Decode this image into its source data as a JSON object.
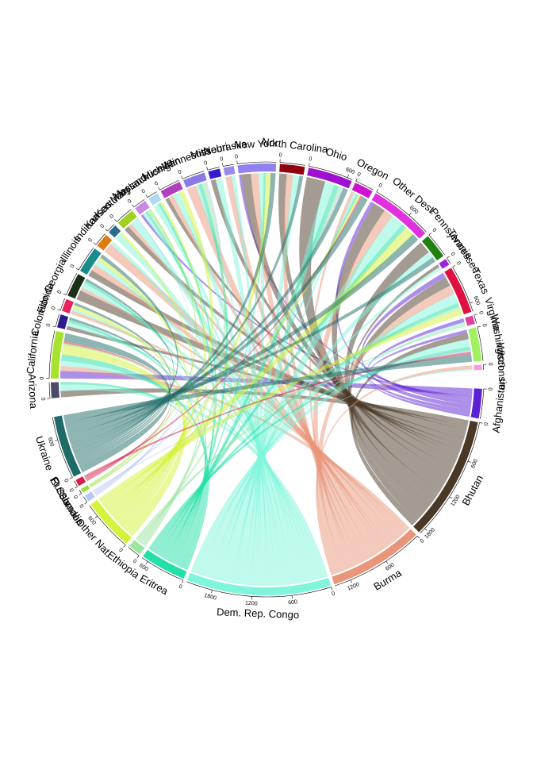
{
  "chart_data": {
    "type": "chord",
    "origins": [
      {
        "name": "Afghanistan",
        "color": "#5b1fd6",
        "ticks": [
          0
        ]
      },
      {
        "name": "Bhutan",
        "color": "#4a3826",
        "ticks": [
          0,
          600,
          1200,
          1800
        ]
      },
      {
        "name": "Burma",
        "color": "#e8957a",
        "ticks": [
          0,
          600,
          1200
        ]
      },
      {
        "name": "Dem. Rep. Congo",
        "color": "#7ff5dc",
        "ticks": [
          0,
          600,
          1200,
          1800
        ]
      },
      {
        "name": "Eritrea",
        "color": "#22e0a8",
        "ticks": [
          0,
          600
        ]
      },
      {
        "name": "Ethiopia",
        "color": "#9be6a0",
        "ticks": [
          0
        ]
      },
      {
        "name": "Other Nat.",
        "color": "#d6f23a",
        "ticks": [
          0,
          600
        ]
      },
      {
        "name": "Somalia",
        "color": "#b7c8f5",
        "ticks": [
          0
        ]
      },
      {
        "name": "El Salvador",
        "color": "#94e03c",
        "ticks": [
          0
        ]
      },
      {
        "name": "Russia",
        "color": "#d4204a",
        "ticks": [
          0
        ]
      },
      {
        "name": "Ukraine",
        "color": "#1f6b68",
        "ticks": [
          0,
          600
        ]
      }
    ],
    "destinations": [
      {
        "name": "Arizona",
        "color": "#4a4a6a",
        "ticks": [
          0
        ]
      },
      {
        "name": "California",
        "color": "#a6e22e",
        "ticks": [
          0
        ]
      },
      {
        "name": "Colorado",
        "color": "#2b1b8c",
        "ticks": [
          0
        ]
      },
      {
        "name": "Florida",
        "color": "#e8245a",
        "ticks": [
          0
        ]
      },
      {
        "name": "Georgia",
        "color": "#1a2e1a",
        "ticks": [
          0
        ]
      },
      {
        "name": "Illinois",
        "color": "#1a8c8c",
        "ticks": [
          0
        ]
      },
      {
        "name": "Indiana",
        "color": "#e07a10",
        "ticks": [
          0
        ]
      },
      {
        "name": "Kansas",
        "color": "#2a6a8a",
        "ticks": [
          0
        ]
      },
      {
        "name": "Kentucky",
        "color": "#a0d020",
        "ticks": [
          0
        ]
      },
      {
        "name": "Maryland",
        "color": "#c88ae0",
        "ticks": [
          0
        ]
      },
      {
        "name": "Massachusetts",
        "color": "#b0d8f0",
        "ticks": [
          0
        ]
      },
      {
        "name": "Michigan",
        "color": "#b040c0",
        "ticks": [
          0
        ]
      },
      {
        "name": "Minnesota",
        "color": "#8a7ae8",
        "ticks": [
          0
        ]
      },
      {
        "name": "Missouri",
        "color": "#3a1ad0",
        "ticks": [
          0
        ]
      },
      {
        "name": "Nebraska",
        "color": "#9a8af0",
        "ticks": [
          0
        ]
      },
      {
        "name": "New York",
        "color": "#9080f0",
        "ticks": [
          0
        ]
      },
      {
        "name": "North Carolina",
        "color": "#900010",
        "ticks": [
          0
        ]
      },
      {
        "name": "Ohio",
        "color": "#a010d0",
        "ticks": [
          0,
          600
        ]
      },
      {
        "name": "Oregon",
        "color": "#d010d0",
        "ticks": [
          0
        ]
      },
      {
        "name": "Other Dest.",
        "color": "#e030e0",
        "ticks": [
          0,
          600
        ]
      },
      {
        "name": "Pennsylvania",
        "color": "#208010",
        "ticks": [
          0
        ]
      },
      {
        "name": "Tennessee",
        "color": "#a020e0",
        "ticks": [
          0
        ]
      },
      {
        "name": "Texas",
        "color": "#e01040",
        "ticks": [
          0,
          600
        ]
      },
      {
        "name": "Virginia",
        "color": "#e040a0",
        "ticks": [
          0
        ]
      },
      {
        "name": "Washington",
        "color": "#a0f060",
        "ticks": [
          0
        ]
      },
      {
        "name": "Wisconsin",
        "color": "#f0a0e0",
        "ticks": [
          0
        ]
      }
    ],
    "matrix": [
      [
        0,
        120,
        0,
        0,
        0,
        0,
        0,
        0,
        0,
        40,
        0,
        0,
        0,
        0,
        0,
        40,
        0,
        0,
        0,
        60,
        0,
        0,
        80,
        60,
        50,
        0
      ],
      [
        100,
        0,
        60,
        0,
        150,
        100,
        0,
        0,
        80,
        0,
        0,
        60,
        0,
        80,
        0,
        150,
        120,
        300,
        0,
        200,
        200,
        50,
        150,
        0,
        100,
        0
      ],
      [
        0,
        80,
        0,
        50,
        50,
        100,
        150,
        0,
        60,
        0,
        0,
        80,
        150,
        0,
        100,
        120,
        100,
        0,
        50,
        150,
        0,
        0,
        150,
        0,
        0,
        60
      ],
      [
        100,
        80,
        60,
        40,
        80,
        80,
        60,
        100,
        120,
        50,
        80,
        100,
        40,
        100,
        60,
        80,
        100,
        150,
        40,
        200,
        100,
        50,
        150,
        40,
        120,
        20
      ],
      [
        40,
        100,
        40,
        0,
        40,
        0,
        0,
        0,
        0,
        40,
        40,
        0,
        60,
        0,
        0,
        30,
        0,
        80,
        30,
        80,
        0,
        0,
        60,
        0,
        60,
        0
      ],
      [
        0,
        0,
        0,
        0,
        0,
        0,
        0,
        0,
        0,
        30,
        0,
        0,
        60,
        0,
        0,
        0,
        0,
        40,
        0,
        0,
        0,
        0,
        40,
        30,
        0,
        0
      ],
      [
        0,
        150,
        0,
        60,
        0,
        60,
        0,
        40,
        0,
        0,
        40,
        80,
        0,
        0,
        0,
        80,
        0,
        0,
        40,
        150,
        0,
        0,
        100,
        0,
        0,
        0
      ],
      [
        0,
        0,
        0,
        0,
        0,
        0,
        0,
        0,
        20,
        0,
        0,
        0,
        30,
        0,
        0,
        0,
        0,
        30,
        0,
        0,
        0,
        0,
        0,
        0,
        20,
        0
      ],
      [
        0,
        30,
        0,
        0,
        0,
        0,
        0,
        0,
        0,
        30,
        0,
        0,
        0,
        0,
        0,
        0,
        0,
        0,
        0,
        0,
        0,
        0,
        0,
        0,
        0,
        0
      ],
      [
        0,
        30,
        0,
        0,
        0,
        0,
        0,
        0,
        0,
        0,
        0,
        0,
        0,
        0,
        0,
        0,
        0,
        0,
        30,
        0,
        0,
        0,
        0,
        0,
        40,
        0
      ],
      [
        0,
        130,
        40,
        40,
        40,
        60,
        0,
        0,
        0,
        0,
        0,
        0,
        0,
        0,
        0,
        80,
        60,
        80,
        100,
        120,
        80,
        0,
        0,
        0,
        120,
        0
      ]
    ]
  }
}
